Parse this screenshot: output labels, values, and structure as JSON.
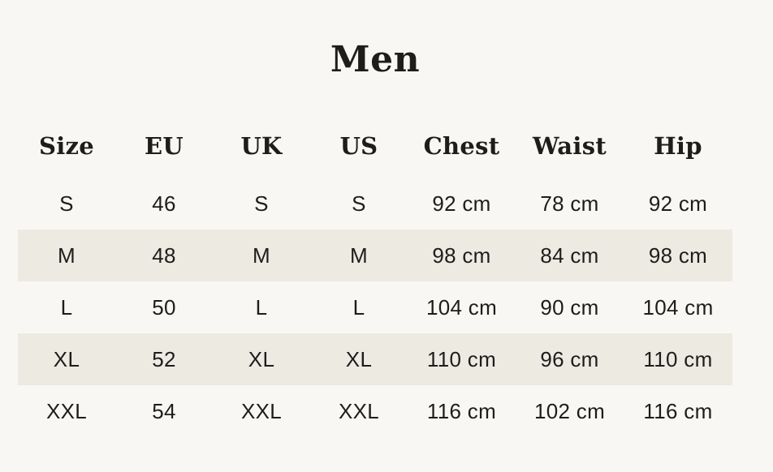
{
  "page": {
    "title": "Men"
  },
  "theme": {
    "background": "#f8f7f4",
    "row_alt_background": "#edeae2",
    "text_color": "#1e1d1b"
  },
  "table": {
    "columns": [
      "Size",
      "EU",
      "UK",
      "US",
      "Chest",
      "Waist",
      "Hip"
    ],
    "rows": [
      [
        "S",
        "46",
        "S",
        "S",
        "92 cm",
        "78 cm",
        "92 cm"
      ],
      [
        "M",
        "48",
        "M",
        "M",
        "98 cm",
        "84 cm",
        "98 cm"
      ],
      [
        "L",
        "50",
        "L",
        "L",
        "104 cm",
        "90 cm",
        "104 cm"
      ],
      [
        "XL",
        "52",
        "XL",
        "XL",
        "110 cm",
        "96 cm",
        "110 cm"
      ],
      [
        "XXL",
        "54",
        "XXL",
        "XXL",
        "116 cm",
        "102 cm",
        "116 cm"
      ]
    ]
  },
  "chart_data": {
    "type": "table",
    "title": "Men",
    "columns": [
      "Size",
      "EU",
      "UK",
      "US",
      "Chest",
      "Waist",
      "Hip"
    ],
    "rows": [
      [
        "S",
        "46",
        "S",
        "S",
        "92 cm",
        "78 cm",
        "92 cm"
      ],
      [
        "M",
        "48",
        "M",
        "M",
        "98 cm",
        "84 cm",
        "98 cm"
      ],
      [
        "L",
        "50",
        "L",
        "L",
        "104 cm",
        "90 cm",
        "104 cm"
      ],
      [
        "XL",
        "52",
        "XL",
        "XL",
        "110 cm",
        "96 cm",
        "110 cm"
      ],
      [
        "XXL",
        "54",
        "XXL",
        "XXL",
        "116 cm",
        "102 cm",
        "116 cm"
      ]
    ]
  }
}
